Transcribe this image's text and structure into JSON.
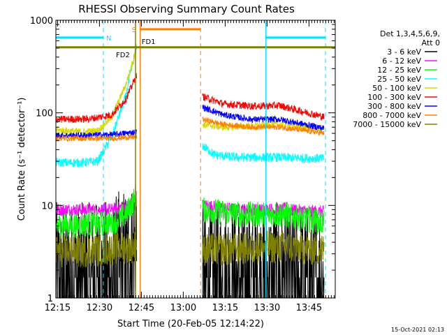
{
  "chart_data": {
    "type": "line",
    "title": "RHESSI Observing Summary Count Rates",
    "xlabel": "Start Time (20-Feb-05 12:14:22)",
    "ylabel": "Count Rate (s⁻¹ detector⁻¹)",
    "yscale": "log",
    "ylim": [
      1,
      1000
    ],
    "xlim_minutes": [
      0,
      100
    ],
    "x_ticks": [
      {
        "label": "12:15",
        "t": 0.6
      },
      {
        "label": "12:30",
        "t": 15.6
      },
      {
        "label": "12:45",
        "t": 30.6
      },
      {
        "label": "13:00",
        "t": 45.6
      },
      {
        "label": "13:15",
        "t": 60.6
      },
      {
        "label": "13:30",
        "t": 75.6
      },
      {
        "label": "13:45",
        "t": 90.6
      }
    ],
    "y_ticks": [
      {
        "label": "1",
        "v": 1
      },
      {
        "label": "10",
        "v": 10
      },
      {
        "label": "100",
        "v": 100
      },
      {
        "label": "1000",
        "v": 1000
      }
    ],
    "legend_header": [
      "Det 1,3,4,5,6,9,",
      "Att 0"
    ],
    "legend": [
      {
        "name": "3 - 6 keV",
        "color": "#000000"
      },
      {
        "name": "6 - 12 keV",
        "color": "#ff00ff"
      },
      {
        "name": "12 - 25 keV",
        "color": "#00ff00"
      },
      {
        "name": "25 - 50 keV",
        "color": "#00ffff"
      },
      {
        "name": "50 - 100 keV",
        "color": "#d8d800"
      },
      {
        "name": "100 - 300 keV",
        "color": "#ff0000"
      },
      {
        "name": "300 - 800 keV",
        "color": "#0000ff"
      },
      {
        "name": "800 - 7000 keV",
        "color": "#ff8000"
      },
      {
        "name": "7000 - 15000 keV",
        "color": "#808000"
      }
    ],
    "gaps_minutes": [
      [
        29,
        52.5
      ]
    ],
    "series": [
      {
        "name": "3 - 6 keV",
        "color": "#000000",
        "noise": 0.9,
        "points": [
          [
            0,
            1.4
          ],
          [
            10,
            1.4
          ],
          [
            20,
            1.5
          ],
          [
            27,
            2.5
          ],
          [
            29,
            3.5
          ],
          [
            52.5,
            1.3
          ],
          [
            65,
            1.5
          ],
          [
            80,
            1.4
          ],
          [
            96,
            1.3
          ]
        ]
      },
      {
        "name": "6 - 12 keV",
        "color": "#ff00ff",
        "noise": 0.07,
        "points": [
          [
            0,
            9
          ],
          [
            10,
            9
          ],
          [
            20,
            9
          ],
          [
            26,
            10
          ],
          [
            29,
            12
          ],
          [
            52.5,
            10
          ],
          [
            65,
            9
          ],
          [
            80,
            9
          ],
          [
            96,
            8.5
          ]
        ]
      },
      {
        "name": "12 - 25 keV",
        "color": "#00ff00",
        "noise": 0.14,
        "points": [
          [
            0,
            6
          ],
          [
            10,
            6.2
          ],
          [
            20,
            6.5
          ],
          [
            25,
            8
          ],
          [
            29,
            13
          ],
          [
            52.5,
            9
          ],
          [
            65,
            8
          ],
          [
            80,
            8
          ],
          [
            96,
            6.5
          ]
        ]
      },
      {
        "name": "25 - 50 keV",
        "color": "#00ffff",
        "noise": 0.05,
        "points": [
          [
            0,
            29
          ],
          [
            10,
            29
          ],
          [
            15,
            30
          ],
          [
            20,
            55
          ],
          [
            25,
            150
          ],
          [
            29,
            550
          ],
          [
            52.5,
            44
          ],
          [
            57,
            35
          ],
          [
            65,
            33
          ],
          [
            80,
            33
          ],
          [
            96,
            32
          ]
        ]
      },
      {
        "name": "50 - 100 keV",
        "color": "#d8d800",
        "noise": 0.04,
        "points": [
          [
            0,
            65
          ],
          [
            10,
            62
          ],
          [
            15,
            64
          ],
          [
            20,
            90
          ],
          [
            25,
            200
          ],
          [
            29,
            500
          ],
          [
            52.5,
            75
          ],
          [
            60,
            70
          ],
          [
            70,
            72
          ],
          [
            80,
            75
          ],
          [
            96,
            65
          ]
        ]
      },
      {
        "name": "100 - 300 keV",
        "color": "#ff0000",
        "noise": 0.04,
        "points": [
          [
            0,
            85
          ],
          [
            12,
            86
          ],
          [
            20,
            95
          ],
          [
            25,
            140
          ],
          [
            29,
            260
          ],
          [
            52.5,
            150
          ],
          [
            60,
            125
          ],
          [
            70,
            118
          ],
          [
            80,
            120
          ],
          [
            96,
            90
          ]
        ]
      },
      {
        "name": "300 - 800 keV",
        "color": "#0000ff",
        "noise": 0.035,
        "points": [
          [
            0,
            57
          ],
          [
            10,
            57
          ],
          [
            20,
            58
          ],
          [
            29,
            62
          ],
          [
            52.5,
            115
          ],
          [
            60,
            95
          ],
          [
            70,
            85
          ],
          [
            80,
            85
          ],
          [
            96,
            68
          ]
        ]
      },
      {
        "name": "800 - 7000 keV",
        "color": "#ff8000",
        "noise": 0.03,
        "points": [
          [
            0,
            53
          ],
          [
            10,
            53
          ],
          [
            20,
            53
          ],
          [
            29,
            55
          ],
          [
            52.5,
            85
          ],
          [
            60,
            75
          ],
          [
            70,
            70
          ],
          [
            80,
            70
          ],
          [
            96,
            60
          ]
        ]
      },
      {
        "name": "7000 - 15000 keV",
        "color": "#808000",
        "noise": 0.18,
        "points": [
          [
            0,
            3.2
          ],
          [
            10,
            3.2
          ],
          [
            20,
            3.4
          ],
          [
            29,
            3.6
          ],
          [
            52.5,
            3.3
          ],
          [
            65,
            3.4
          ],
          [
            80,
            3.6
          ],
          [
            96,
            3.3
          ]
        ]
      }
    ],
    "markers": [
      {
        "label": "N",
        "color": "#00e0ff",
        "bar_minutes": [
          0,
          17
        ],
        "bar_value": 650,
        "dash_at": [
          17,
          96.5
        ],
        "bar2_minutes": [
          75.2,
          96.5
        ]
      },
      {
        "label": "S",
        "color": "#ff8000",
        "bar_minutes": [
          30.2,
          51.8
        ],
        "bar_value": 800,
        "dash_at": [
          51.8
        ]
      },
      {
        "label": "FD1",
        "color": "#ff8000",
        "line_at": 30.2
      },
      {
        "label": "FD2",
        "color": "#808000",
        "bar_minutes": [
          0,
          100
        ],
        "bar_value": 510,
        "line_at": 28.5
      }
    ],
    "grid": false,
    "legend_placement": "right",
    "solid_lines_minutes": [
      {
        "t": 75.2,
        "color": "#00e0ff"
      }
    ]
  },
  "footer": {
    "timestamp": "15-Oct-2021 02:13"
  }
}
